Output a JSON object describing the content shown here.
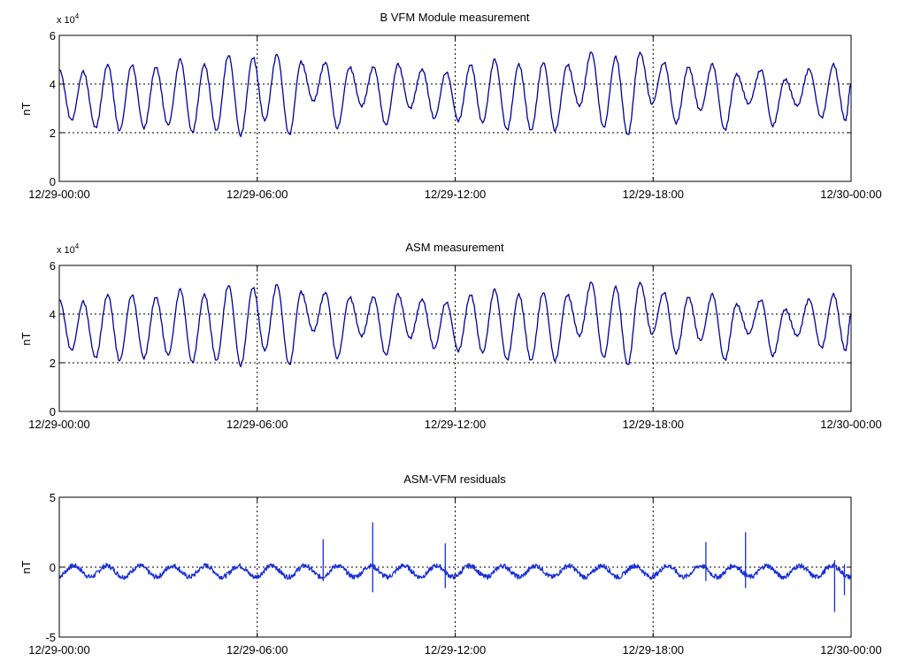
{
  "chart_data": [
    {
      "type": "line",
      "title": "B VFM Module measurement",
      "ylabel": "nT",
      "y_exponent_label": "x 10",
      "y_exponent_power": "4",
      "xlim": [
        "12/29-00:00",
        "12/30-00:00"
      ],
      "ylim": [
        0,
        6
      ],
      "x_ticks": [
        "12/29-00:00",
        "12/29-06:00",
        "12/29-12:00",
        "12/29-18:00",
        "12/30-00:00"
      ],
      "y_ticks": [
        "0",
        "2",
        "4",
        "6"
      ],
      "y_grid": [
        2,
        4
      ],
      "x_grid": [
        "12/29-06:00",
        "12/29-12:00",
        "12/29-18:00"
      ],
      "series_color": "#00009a",
      "series": [
        {
          "x_hours": [
            0,
            0.37,
            0.73,
            1.1,
            1.47,
            1.83,
            2.2,
            2.57,
            2.93,
            3.3,
            3.67,
            4.03,
            4.4,
            4.77,
            5.13,
            5.5,
            5.87,
            6.23,
            6.6,
            6.97,
            7.33,
            7.7,
            8.07,
            8.43,
            8.8,
            9.17,
            9.53,
            9.9,
            10.27,
            10.63,
            11,
            11.37,
            11.73,
            12.1,
            12.47,
            12.83,
            13.2,
            13.57,
            13.93,
            14.3,
            14.67,
            15.03,
            15.4,
            15.77,
            16.13,
            16.5,
            16.87,
            17.23,
            17.6,
            17.97,
            18.33,
            18.7,
            19.07,
            19.43,
            19.8,
            20.17,
            20.53,
            20.9,
            21.27,
            21.63,
            22,
            22.37,
            22.73,
            23.1,
            23.47,
            23.83,
            24
          ],
          "values": [
            4.6,
            2.5,
            4.5,
            2.2,
            4.8,
            2.1,
            4.8,
            2.2,
            4.7,
            2.3,
            5.0,
            2.0,
            4.8,
            2.1,
            5.2,
            1.9,
            5.1,
            2.5,
            5.2,
            1.9,
            4.9,
            3.3,
            4.9,
            2.2,
            4.7,
            3.1,
            4.7,
            2.3,
            4.8,
            3.0,
            4.6,
            2.6,
            4.5,
            2.5,
            4.8,
            2.4,
            5.0,
            2.1,
            4.8,
            2.1,
            4.9,
            2.1,
            4.8,
            3.1,
            5.3,
            2.2,
            5.1,
            1.9,
            5.3,
            3.2,
            4.9,
            2.4,
            4.7,
            2.9,
            4.8,
            2.1,
            4.4,
            3.2,
            4.6,
            2.3,
            4.2,
            3.1,
            4.6,
            2.6,
            4.8,
            2.5,
            4.0
          ]
        }
      ]
    },
    {
      "type": "line",
      "title": "ASM measurement",
      "ylabel": "nT",
      "y_exponent_label": "x 10",
      "y_exponent_power": "4",
      "xlim": [
        "12/29-00:00",
        "12/30-00:00"
      ],
      "ylim": [
        0,
        6
      ],
      "x_ticks": [
        "12/29-00:00",
        "12/29-06:00",
        "12/29-12:00",
        "12/29-18:00",
        "12/30-00:00"
      ],
      "y_ticks": [
        "0",
        "2",
        "4",
        "6"
      ],
      "y_grid": [
        2,
        4
      ],
      "x_grid": [
        "12/29-06:00",
        "12/29-12:00",
        "12/29-18:00"
      ],
      "series_color": "#00009a",
      "series": [
        {
          "x_hours": [
            0,
            0.37,
            0.73,
            1.1,
            1.47,
            1.83,
            2.2,
            2.57,
            2.93,
            3.3,
            3.67,
            4.03,
            4.4,
            4.77,
            5.13,
            5.5,
            5.87,
            6.23,
            6.6,
            6.97,
            7.33,
            7.7,
            8.07,
            8.43,
            8.8,
            9.17,
            9.53,
            9.9,
            10.27,
            10.63,
            11,
            11.37,
            11.73,
            12.1,
            12.47,
            12.83,
            13.2,
            13.57,
            13.93,
            14.3,
            14.67,
            15.03,
            15.4,
            15.77,
            16.13,
            16.5,
            16.87,
            17.23,
            17.6,
            17.97,
            18.33,
            18.7,
            19.07,
            19.43,
            19.8,
            20.17,
            20.53,
            20.9,
            21.27,
            21.63,
            22,
            22.37,
            22.73,
            23.1,
            23.47,
            23.83,
            24
          ],
          "values": [
            4.6,
            2.5,
            4.5,
            2.2,
            4.8,
            2.1,
            4.8,
            2.2,
            4.7,
            2.3,
            5.0,
            2.0,
            4.8,
            2.1,
            5.2,
            1.9,
            5.1,
            2.5,
            5.2,
            1.9,
            4.9,
            3.3,
            4.9,
            2.2,
            4.7,
            3.1,
            4.7,
            2.3,
            4.8,
            3.0,
            4.6,
            2.6,
            4.5,
            2.5,
            4.8,
            2.4,
            5.0,
            2.1,
            4.8,
            2.1,
            4.9,
            2.1,
            4.8,
            3.1,
            5.3,
            2.2,
            5.1,
            1.9,
            5.3,
            3.2,
            4.9,
            2.4,
            4.7,
            2.9,
            4.8,
            2.1,
            4.4,
            3.2,
            4.6,
            2.3,
            4.2,
            3.1,
            4.6,
            2.6,
            4.8,
            2.5,
            4.0
          ]
        }
      ]
    },
    {
      "type": "line",
      "title": "ASM-VFM residuals",
      "ylabel": "nT",
      "xlim": [
        "12/29-00:00",
        "12/30-00:00"
      ],
      "ylim": [
        -5,
        5
      ],
      "x_ticks": [
        "12/29-00:00",
        "12/29-06:00",
        "12/29-12:00",
        "12/29-18:00",
        "12/30-00:00"
      ],
      "y_ticks": [
        "-5",
        "0",
        "5"
      ],
      "y_grid": [
        0
      ],
      "x_grid": [
        "12/29-06:00",
        "12/29-12:00",
        "12/29-18:00"
      ],
      "series_color": "#1a2fd6",
      "series": [
        {
          "oscillation_period_hours": 1.0,
          "oscillation_amplitude": 0.8,
          "offset": -0.5,
          "spikes": [
            {
              "x_hours": 8.0,
              "values": [
                2.0,
                -1.0
              ]
            },
            {
              "x_hours": 9.5,
              "values": [
                3.2,
                -1.8
              ]
            },
            {
              "x_hours": 11.7,
              "values": [
                1.7,
                -1.5
              ]
            },
            {
              "x_hours": 19.6,
              "values": [
                1.8,
                -1.0
              ]
            },
            {
              "x_hours": 20.8,
              "values": [
                2.5,
                -1.5
              ]
            },
            {
              "x_hours": 23.5,
              "values": [
                -3.2,
                0.5
              ]
            },
            {
              "x_hours": 23.8,
              "values": [
                -2.0,
                0.2
              ]
            }
          ]
        }
      ]
    }
  ]
}
